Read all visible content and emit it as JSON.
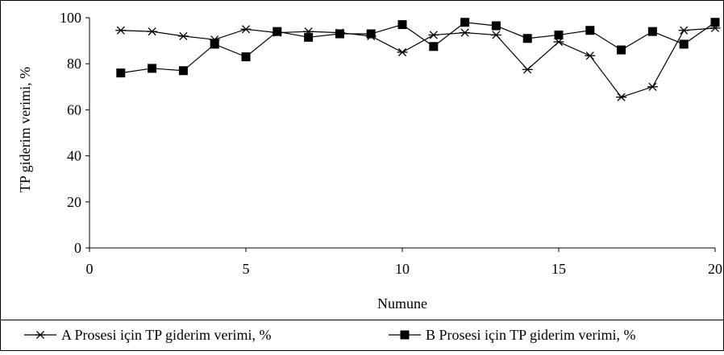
{
  "chart_data": {
    "type": "line",
    "xlabel": "Numune",
    "ylabel": "TP giderim verimi, %",
    "xlim": [
      0,
      20
    ],
    "ylim": [
      0,
      100
    ],
    "xticks": [
      0,
      5,
      10,
      15,
      20
    ],
    "yticks": [
      0,
      20,
      40,
      60,
      80,
      100
    ],
    "grid": false,
    "legend_position": "bottom",
    "x": [
      1,
      2,
      3,
      4,
      5,
      6,
      7,
      8,
      9,
      10,
      11,
      12,
      13,
      14,
      15,
      16,
      17,
      18,
      19,
      20
    ],
    "series": [
      {
        "name": "A Prosesi için TP giderim verimi, %",
        "marker": "asterisk",
        "color": "#000000",
        "values": [
          94.5,
          94,
          92,
          90.5,
          95,
          93.5,
          94,
          93.5,
          92,
          85,
          92.5,
          93.5,
          92.5,
          77.5,
          89.5,
          83.5,
          65.5,
          70,
          94.5,
          95.5
        ]
      },
      {
        "name": "B Prosesi için TP giderim verimi, %",
        "marker": "square",
        "color": "#000000",
        "values": [
          76,
          78,
          77,
          88.5,
          83,
          94,
          91.5,
          93,
          93,
          97,
          87.5,
          98,
          96.5,
          91,
          92.5,
          94.5,
          86,
          94,
          88.5,
          98
        ]
      }
    ]
  }
}
